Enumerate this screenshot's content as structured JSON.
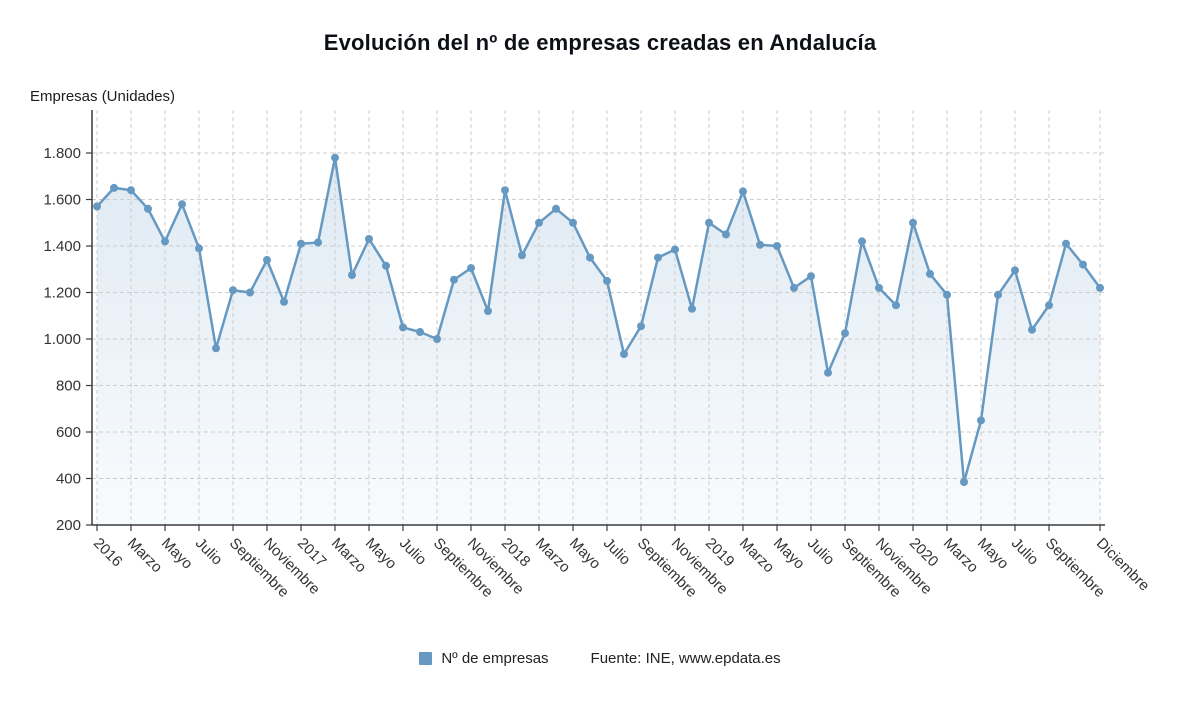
{
  "title": "Evolución del nº de empresas creadas en Andalucía",
  "y_axis_label": "Empresas (Unidades)",
  "legend": {
    "label": "Nº de empresas"
  },
  "source": "Fuente: INE, www.epdata.es",
  "colors": {
    "line": "#6699c2",
    "marker": "#6699c2",
    "area_top": "#dde8f2",
    "area_bottom": "#f8fbfd",
    "grid": "#cdcdcd",
    "axis": "#3c3c3c",
    "tick_text": "#333333",
    "title_text": "#0d1117"
  },
  "chart_data": {
    "type": "line",
    "title": "Evolución del nº de empresas creadas en Andalucía",
    "xlabel": "",
    "ylabel": "Empresas (Unidades)",
    "x_unit": "month",
    "x_range": "Enero 2016 - Diciembre 2020",
    "ylim": [
      200,
      1985
    ],
    "grid": true,
    "legend_position": "bottom",
    "y_ticks": [
      {
        "value": 200,
        "label": "200"
      },
      {
        "value": 400,
        "label": "400"
      },
      {
        "value": 600,
        "label": "600"
      },
      {
        "value": 800,
        "label": "800"
      },
      {
        "value": 1000,
        "label": "1.000"
      },
      {
        "value": 1200,
        "label": "1.200"
      },
      {
        "value": 1400,
        "label": "1.400"
      },
      {
        "value": 1600,
        "label": "1.600"
      },
      {
        "value": 1800,
        "label": "1.800"
      }
    ],
    "x_tick_labels": [
      {
        "i": 0,
        "t": "2016"
      },
      {
        "i": 2,
        "t": "Marzo"
      },
      {
        "i": 4,
        "t": "Mayo"
      },
      {
        "i": 6,
        "t": "Julio"
      },
      {
        "i": 8,
        "t": "Septiembre"
      },
      {
        "i": 10,
        "t": "Noviembre"
      },
      {
        "i": 12,
        "t": "2017"
      },
      {
        "i": 14,
        "t": "Marzo"
      },
      {
        "i": 16,
        "t": "Mayo"
      },
      {
        "i": 18,
        "t": "Julio"
      },
      {
        "i": 20,
        "t": "Septiembre"
      },
      {
        "i": 22,
        "t": "Noviembre"
      },
      {
        "i": 24,
        "t": "2018"
      },
      {
        "i": 26,
        "t": "Marzo"
      },
      {
        "i": 28,
        "t": "Mayo"
      },
      {
        "i": 30,
        "t": "Julio"
      },
      {
        "i": 32,
        "t": "Septiembre"
      },
      {
        "i": 34,
        "t": "Noviembre"
      },
      {
        "i": 36,
        "t": "2019"
      },
      {
        "i": 38,
        "t": "Marzo"
      },
      {
        "i": 40,
        "t": "Mayo"
      },
      {
        "i": 42,
        "t": "Julio"
      },
      {
        "i": 44,
        "t": "Septiembre"
      },
      {
        "i": 46,
        "t": "Noviembre"
      },
      {
        "i": 48,
        "t": "2020"
      },
      {
        "i": 50,
        "t": "Marzo"
      },
      {
        "i": 52,
        "t": "Mayo"
      },
      {
        "i": 54,
        "t": "Julio"
      },
      {
        "i": 56,
        "t": "Septiembre"
      },
      {
        "i": 59,
        "t": "Diciembre"
      }
    ],
    "series": [
      {
        "name": "Nº de empresas",
        "values": [
          1570,
          1650,
          1640,
          1560,
          1420,
          1580,
          1390,
          960,
          1210,
          1200,
          1340,
          1160,
          1410,
          1415,
          1780,
          1275,
          1430,
          1315,
          1050,
          1030,
          1000,
          1255,
          1305,
          1120,
          1640,
          1360,
          1500,
          1560,
          1500,
          1350,
          1250,
          935,
          1055,
          1350,
          1385,
          1130,
          1500,
          1450,
          1635,
          1405,
          1400,
          1220,
          1270,
          855,
          1025,
          1420,
          1220,
          1145,
          1500,
          1280,
          1190,
          385,
          650,
          1190,
          1295,
          1040,
          1145,
          1410,
          1320,
          1220
        ]
      }
    ]
  }
}
